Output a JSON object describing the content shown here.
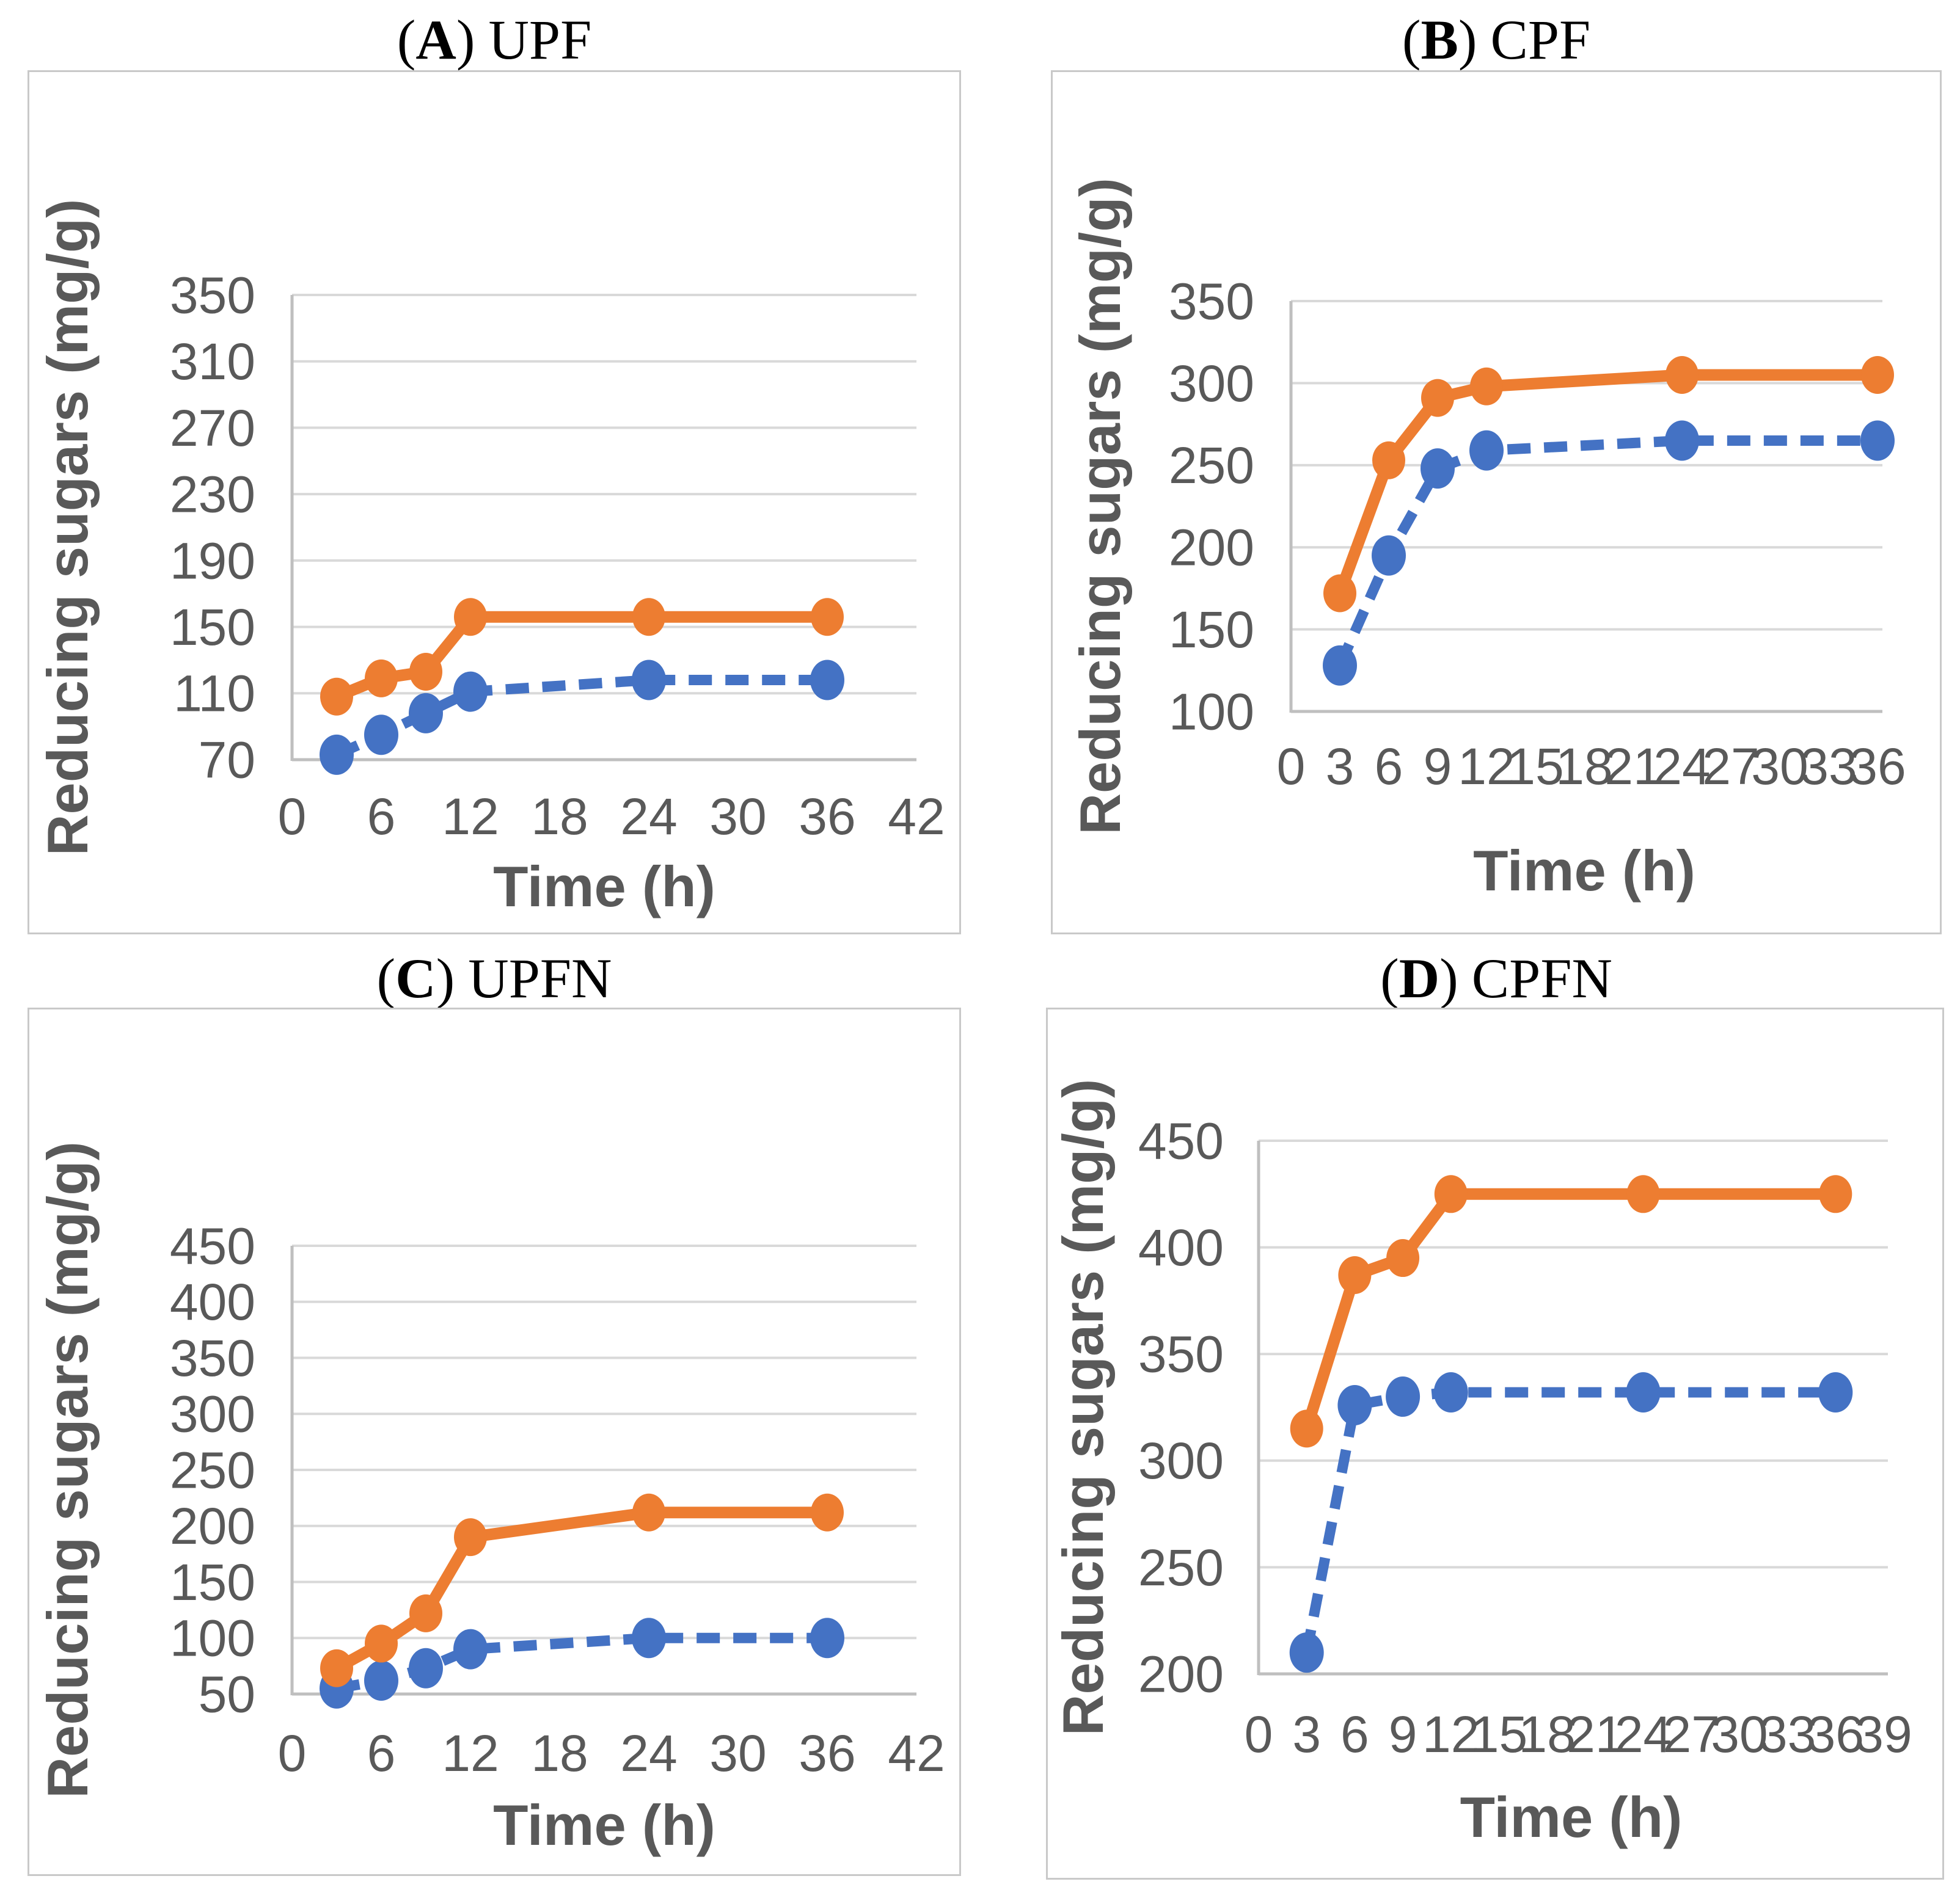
{
  "styles": {
    "accent_orange": "#ED7D31",
    "accent_blue": "#4472C4",
    "grid_color": "#D9D9D9",
    "axis_line_color": "#BFBFBF",
    "axis_text_color": "#595959",
    "box_border_color": "#C9C9C9",
    "title_color": "#000000"
  },
  "chart_data": [
    {
      "type": "line",
      "panel_letter": "A",
      "panel_name": "UPF",
      "title": "(A) UPF",
      "title_open": "(",
      "title_close": ")",
      "xlabel": "Time (h)",
      "ylabel": "Reducing sugars (mg/g)",
      "x": [
        3,
        6,
        9,
        12,
        24,
        36
      ],
      "x_ticks": [
        0,
        6,
        12,
        18,
        24,
        30,
        36,
        42
      ],
      "y_ticks": [
        70,
        110,
        150,
        190,
        230,
        270,
        310,
        350
      ],
      "xlim": [
        0,
        42
      ],
      "ylim": [
        70,
        350
      ],
      "grid": true,
      "legend": "none",
      "series": [
        {
          "name": "solid-orange",
          "color": "#ED7D31",
          "line_style": "solid",
          "marker": "circle",
          "values": [
            108,
            119,
            123,
            156,
            156,
            156
          ]
        },
        {
          "name": "dashed-blue",
          "color": "#4472C4",
          "line_style": "dashed",
          "marker": "circle",
          "values": [
            73,
            85,
            98,
            111,
            118,
            118
          ]
        }
      ]
    },
    {
      "type": "line",
      "panel_letter": "B",
      "panel_name": "CPF",
      "title": "(B) CPF",
      "title_open": "(",
      "title_close": ")",
      "xlabel": "Time (h)",
      "ylabel": "Reducing sugars (mg/g)",
      "x": [
        3,
        6,
        9,
        12,
        24,
        36
      ],
      "x_ticks": [
        0,
        3,
        6,
        9,
        12,
        15,
        18,
        21,
        24,
        27,
        30,
        33,
        36
      ],
      "y_ticks": [
        100,
        150,
        200,
        250,
        300,
        350
      ],
      "xlim": [
        0,
        36
      ],
      "ylim": [
        100,
        350
      ],
      "grid": true,
      "legend": "none",
      "series": [
        {
          "name": "solid-orange",
          "color": "#ED7D31",
          "line_style": "solid",
          "marker": "circle",
          "values": [
            172,
            253,
            291,
            298,
            305,
            305
          ]
        },
        {
          "name": "dashed-blue",
          "color": "#4472C4",
          "line_style": "dashed",
          "marker": "circle",
          "values": [
            128,
            195,
            248,
            259,
            265,
            265
          ]
        }
      ]
    },
    {
      "type": "line",
      "panel_letter": "C",
      "panel_name": "UPFN",
      "title": "(C) UPFN",
      "title_open": "(",
      "title_close": ")",
      "xlabel": "Time (h)",
      "ylabel": "Reducing sugars (mg/g)",
      "x": [
        3,
        6,
        9,
        12,
        24,
        36
      ],
      "x_ticks": [
        0,
        6,
        12,
        18,
        24,
        30,
        36,
        42
      ],
      "y_ticks": [
        50,
        100,
        150,
        200,
        250,
        300,
        350,
        400,
        450
      ],
      "xlim": [
        0,
        42
      ],
      "ylim": [
        50,
        450
      ],
      "grid": true,
      "legend": "none",
      "series": [
        {
          "name": "solid-orange",
          "color": "#ED7D31",
          "line_style": "solid",
          "marker": "circle",
          "values": [
            73,
            95,
            122,
            190,
            212,
            212
          ]
        },
        {
          "name": "dashed-blue",
          "color": "#4472C4",
          "line_style": "dashed",
          "marker": "circle",
          "values": [
            55,
            62,
            73,
            90,
            100,
            100
          ]
        }
      ]
    },
    {
      "type": "line",
      "panel_letter": "D",
      "panel_name": "CPFN",
      "title": "(D) CPFN",
      "title_open": "(",
      "title_close": ")",
      "xlabel": "Time (h)",
      "ylabel": "Reducing sugars (mg/g)",
      "x": [
        3,
        6,
        9,
        12,
        24,
        36
      ],
      "x_ticks": [
        0,
        3,
        6,
        9,
        12,
        15,
        18,
        21,
        24,
        27,
        30,
        33,
        36,
        39
      ],
      "y_ticks": [
        200,
        250,
        300,
        350,
        400,
        450
      ],
      "xlim": [
        0,
        39
      ],
      "ylim": [
        200,
        450
      ],
      "grid": true,
      "legend": "none",
      "series": [
        {
          "name": "solid-orange",
          "color": "#ED7D31",
          "line_style": "solid",
          "marker": "circle",
          "values": [
            315,
            387,
            395,
            425,
            425,
            425
          ]
        },
        {
          "name": "dashed-blue",
          "color": "#4472C4",
          "line_style": "dashed",
          "marker": "circle",
          "values": [
            210,
            326,
            330,
            332,
            332,
            332
          ]
        }
      ]
    }
  ]
}
